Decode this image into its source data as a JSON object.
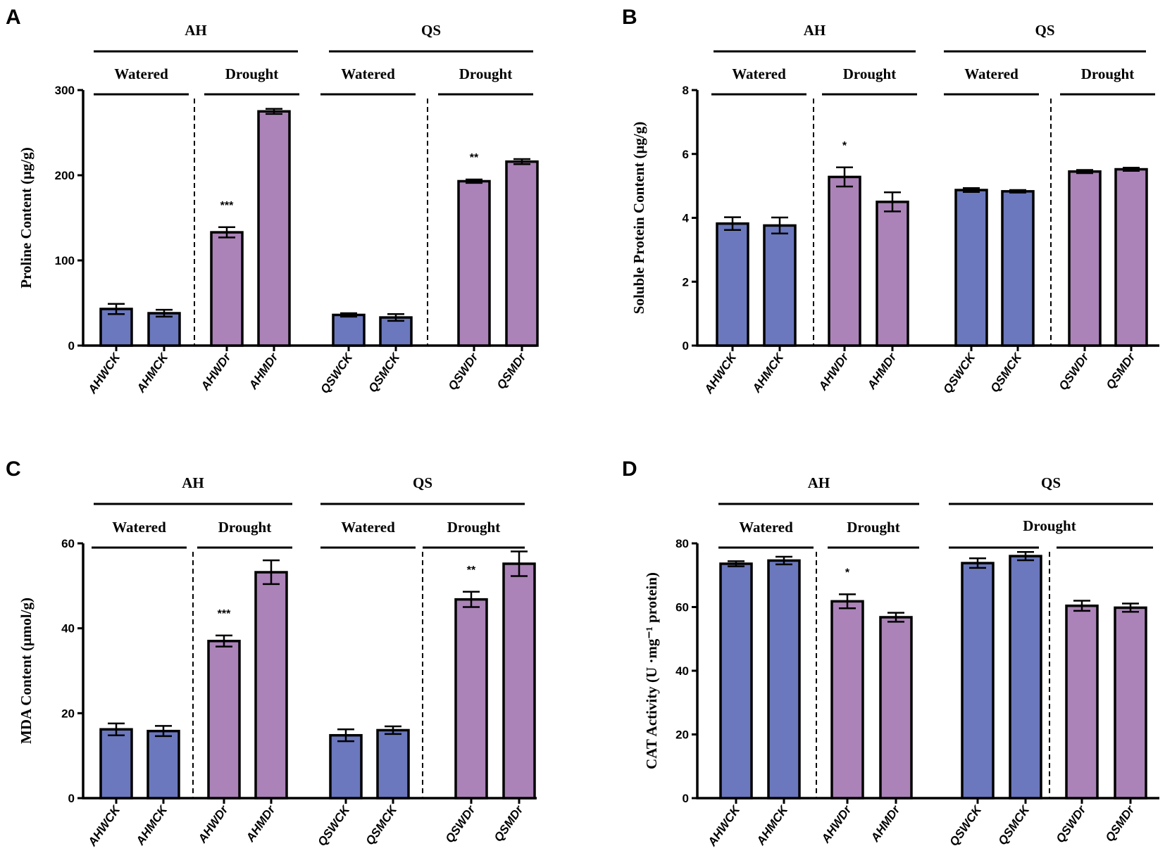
{
  "colors": {
    "watered": "#6b78bd",
    "drought": "#ab83b8",
    "stroke": "#000000"
  },
  "chart_data": [
    {
      "panel": "A",
      "type": "bar",
      "ylabel": "Proline Content (μg/g)",
      "ylim": [
        0,
        300
      ],
      "yticks": [
        0,
        100,
        200,
        300
      ],
      "categories": [
        "AHWCK",
        "AHMCK",
        "AHWDr",
        "AHMDr",
        "QSWCK",
        "QSMCK",
        "QSWDr",
        "QSMDr"
      ],
      "values": [
        43,
        38,
        133,
        275,
        36,
        33,
        193,
        216
      ],
      "errors": [
        6,
        4,
        6,
        3,
        2,
        4,
        2,
        3
      ],
      "treatment": [
        "watered",
        "watered",
        "drought",
        "drought",
        "watered",
        "watered",
        "drought",
        "drought"
      ],
      "annotations": [
        "",
        "",
        "***",
        "",
        "",
        "",
        "**",
        ""
      ],
      "groups": [
        {
          "label": "AH"
        },
        {
          "label": "QS"
        }
      ],
      "subgroups": [
        {
          "label": "Watered"
        },
        {
          "label": "Drought"
        },
        {
          "label": "Watered"
        },
        {
          "label": "Drought"
        }
      ]
    },
    {
      "panel": "B",
      "type": "bar",
      "ylabel": "Soluble Protein Content (μg/g)",
      "ylim": [
        0,
        8
      ],
      "yticks": [
        0,
        2,
        4,
        6,
        8
      ],
      "categories": [
        "AHWCK",
        "AHMCK",
        "AHWDr",
        "AHMDr",
        "QSWCK",
        "QSMCK",
        "QSWDr",
        "QSMDr"
      ],
      "values": [
        3.82,
        3.76,
        5.28,
        4.5,
        4.87,
        4.83,
        5.45,
        5.52
      ],
      "errors": [
        0.2,
        0.25,
        0.3,
        0.3,
        0.06,
        0.04,
        0.05,
        0.05
      ],
      "treatment": [
        "watered",
        "watered",
        "drought",
        "drought",
        "watered",
        "watered",
        "drought",
        "drought"
      ],
      "annotations": [
        "",
        "",
        "*",
        "",
        "",
        "",
        "",
        ""
      ],
      "groups": [
        {
          "label": "AH"
        },
        {
          "label": "QS"
        }
      ],
      "subgroups": [
        {
          "label": "Watered"
        },
        {
          "label": "Drought"
        },
        {
          "label": "Watered"
        },
        {
          "label": "Drought"
        }
      ]
    },
    {
      "panel": "C",
      "type": "bar",
      "ylabel": "MDA Content (μmol/g)",
      "ylim": [
        0,
        60
      ],
      "yticks": [
        0,
        20,
        40,
        60
      ],
      "categories": [
        "AHWCK",
        "AHMCK",
        "AHWDr",
        "AHMDr",
        "QSWCK",
        "QSMCK",
        "QSWDr",
        "QSMDr"
      ],
      "values": [
        16.2,
        15.8,
        37,
        53.2,
        14.8,
        16,
        46.8,
        55.2
      ],
      "errors": [
        1.4,
        1.2,
        1.3,
        2.8,
        1.4,
        0.9,
        1.8,
        2.9
      ],
      "treatment": [
        "watered",
        "watered",
        "drought",
        "drought",
        "watered",
        "watered",
        "drought",
        "drought"
      ],
      "annotations": [
        "",
        "",
        "***",
        "",
        "",
        "",
        "**",
        ""
      ],
      "groups": [
        {
          "label": "AH"
        },
        {
          "label": "QS"
        }
      ],
      "subgroups": [
        {
          "label": "Watered"
        },
        {
          "label": "Drought"
        },
        {
          "label": "Watered"
        },
        {
          "label": "Drought"
        }
      ]
    },
    {
      "panel": "D",
      "type": "bar",
      "ylabel": "CAT Activity (U ·mg⁻¹ protein)",
      "ylim": [
        0,
        80
      ],
      "yticks": [
        0,
        20,
        40,
        60,
        80
      ],
      "categories": [
        "AHWCK",
        "AHMCK",
        "AHWDr",
        "AHMDr",
        "QSWCK",
        "QSMCK",
        "QSWDr",
        "QSMDr"
      ],
      "values": [
        73.6,
        74.6,
        61.8,
        56.8,
        73.8,
        76,
        60.4,
        59.8
      ],
      "errors": [
        0.8,
        1.2,
        2.2,
        1.4,
        1.5,
        1.3,
        1.6,
        1.3
      ],
      "treatment": [
        "watered",
        "watered",
        "drought",
        "drought",
        "watered",
        "watered",
        "drought",
        "drought"
      ],
      "annotations": [
        "",
        "",
        "*",
        "",
        "",
        "",
        "",
        ""
      ],
      "groups": [
        {
          "label": "AH"
        },
        {
          "label": "QS"
        }
      ],
      "subgroups": [
        {
          "label": "Watered"
        },
        {
          "label": "Drought"
        },
        {
          "label": ""
        },
        {
          "label": ""
        }
      ],
      "group_sublabel": "Drought"
    }
  ]
}
